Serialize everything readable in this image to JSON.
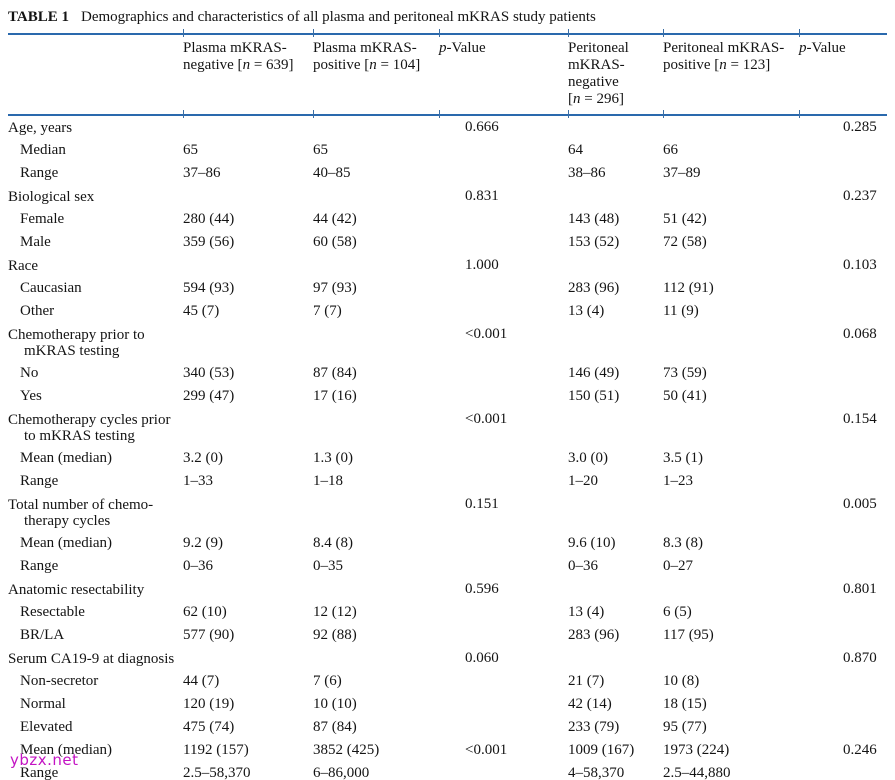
{
  "title": {
    "label": "TABLE 1",
    "text": "Demographics and characteristics of all plasma and peritoneal mKRAS study patients"
  },
  "watermark": "ybzx.net",
  "colors": {
    "rule_blue": "#2a69ad",
    "watermark_magenta": "#c313c3",
    "text": "#141414"
  },
  "table": {
    "columns": [
      {
        "key": "row-label",
        "segments": []
      },
      {
        "key": "plasma-neg",
        "segments": [
          {
            "t": "Plasma mKRAS-negative [",
            "i": false
          },
          {
            "t": "n",
            "i": true
          },
          {
            "t": " = 639]",
            "i": false
          }
        ]
      },
      {
        "key": "plasma-pos",
        "segments": [
          {
            "t": "Plasma mKRAS-positive [",
            "i": false
          },
          {
            "t": "n",
            "i": true
          },
          {
            "t": " = 104]",
            "i": false
          }
        ]
      },
      {
        "key": "p-value-plasma",
        "segments": [
          {
            "t": "p",
            "i": true
          },
          {
            "t": "-Value",
            "i": false
          }
        ]
      },
      {
        "key": "peritoneal-neg",
        "segments": [
          {
            "t": "Peritoneal mKRAS-negative [",
            "i": false
          },
          {
            "t": "n",
            "i": true
          },
          {
            "t": " = 296]",
            "i": false
          }
        ]
      },
      {
        "key": "peritoneal-pos",
        "segments": [
          {
            "t": "Peritoneal mKRAS-positive [",
            "i": false
          },
          {
            "t": "n",
            "i": true
          },
          {
            "t": " = 123]",
            "i": false
          }
        ]
      },
      {
        "key": "p-value-peritoneal",
        "segments": [
          {
            "t": "p",
            "i": true
          },
          {
            "t": "-Value",
            "i": false
          }
        ]
      }
    ],
    "rows": [
      {
        "label": "Age, years",
        "type": "section",
        "cells": [
          "",
          "",
          "0.666",
          "",
          "",
          "0.285"
        ]
      },
      {
        "label": "Median",
        "type": "sub",
        "cells": [
          "65",
          "65",
          "",
          "64",
          "66",
          ""
        ]
      },
      {
        "label": "Range",
        "type": "sub",
        "cells": [
          "37–86",
          "40–85",
          "",
          "38–86",
          "37–89",
          ""
        ]
      },
      {
        "label": "Biological sex",
        "type": "section",
        "cells": [
          "",
          "",
          "0.831",
          "",
          "",
          "0.237"
        ]
      },
      {
        "label": "Female",
        "type": "sub",
        "cells": [
          "280 (44)",
          "44 (42)",
          "",
          "143 (48)",
          "51 (42)",
          ""
        ]
      },
      {
        "label": "Male",
        "type": "sub",
        "cells": [
          "359 (56)",
          "60 (58)",
          "",
          "153 (52)",
          "72 (58)",
          ""
        ]
      },
      {
        "label": "Race",
        "type": "section",
        "cells": [
          "",
          "",
          "1.000",
          "",
          "",
          "0.103"
        ]
      },
      {
        "label": "Caucasian",
        "type": "sub",
        "cells": [
          "594 (93)",
          "97 (93)",
          "",
          "283 (96)",
          "112 (91)",
          ""
        ]
      },
      {
        "label": "Other",
        "type": "sub",
        "cells": [
          "45 (7)",
          "7 (7)",
          "",
          "13 (4)",
          "11 (9)",
          ""
        ]
      },
      {
        "label": "Chemotherapy prior to mKRAS testing",
        "type": "section",
        "cells": [
          "",
          "",
          "<0.001",
          "",
          "",
          "0.068"
        ]
      },
      {
        "label": "No",
        "type": "sub",
        "cells": [
          "340 (53)",
          "87 (84)",
          "",
          "146 (49)",
          "73 (59)",
          ""
        ]
      },
      {
        "label": "Yes",
        "type": "sub",
        "cells": [
          "299 (47)",
          "17 (16)",
          "",
          "150 (51)",
          "50 (41)",
          ""
        ]
      },
      {
        "label": "Chemotherapy cycles prior to mKRAS testing",
        "type": "section",
        "cells": [
          "",
          "",
          "<0.001",
          "",
          "",
          "0.154"
        ]
      },
      {
        "label": "Mean (median)",
        "type": "sub",
        "cells": [
          "3.2 (0)",
          "1.3 (0)",
          "",
          "3.0 (0)",
          "3.5 (1)",
          ""
        ]
      },
      {
        "label": "Range",
        "type": "sub",
        "cells": [
          "1–33",
          "1–18",
          "",
          "1–20",
          "1–23",
          ""
        ]
      },
      {
        "label": "Total number of chemo-therapy cycles",
        "type": "section",
        "cells": [
          "",
          "",
          "0.151",
          "",
          "",
          "0.005"
        ]
      },
      {
        "label": "Mean (median)",
        "type": "sub",
        "cells": [
          "9.2 (9)",
          "8.4 (8)",
          "",
          "9.6 (10)",
          "8.3 (8)",
          ""
        ]
      },
      {
        "label": "Range",
        "type": "sub",
        "cells": [
          "0–36",
          "0–35",
          "",
          "0–36",
          "0–27",
          ""
        ]
      },
      {
        "label": "Anatomic resectability",
        "type": "section",
        "cells": [
          "",
          "",
          "0.596",
          "",
          "",
          "0.801"
        ]
      },
      {
        "label": "Resectable",
        "type": "sub",
        "cells": [
          "62 (10)",
          "12 (12)",
          "",
          "13 (4)",
          "6 (5)",
          ""
        ]
      },
      {
        "label": "BR/LA",
        "type": "sub",
        "cells": [
          "577 (90)",
          "92 (88)",
          "",
          "283 (96)",
          "117 (95)",
          ""
        ]
      },
      {
        "label": "Serum CA19-9 at diagnosis",
        "type": "section",
        "cells": [
          "",
          "",
          "0.060",
          "",
          "",
          "0.870"
        ]
      },
      {
        "label": "Non-secretor",
        "type": "sub",
        "cells": [
          "44 (7)",
          "7 (6)",
          "",
          "21 (7)",
          "10 (8)",
          ""
        ]
      },
      {
        "label": "Normal",
        "type": "sub",
        "cells": [
          "120 (19)",
          "10 (10)",
          "",
          "42 (14)",
          "18 (15)",
          ""
        ]
      },
      {
        "label": "Elevated",
        "type": "sub",
        "cells": [
          "475 (74)",
          "87 (84)",
          "",
          "233 (79)",
          "95 (77)",
          ""
        ]
      },
      {
        "label": "Mean (median)",
        "type": "sub",
        "cells": [
          "1192 (157)",
          "3852 (425)",
          "<0.001",
          "1009 (167)",
          "1973 (224)",
          "0.246"
        ]
      },
      {
        "label": "Range",
        "type": "sub",
        "cells": [
          "2.5–58,370",
          "6–86,000",
          "",
          "4–58,370",
          "2.5–44,880",
          ""
        ]
      }
    ]
  }
}
